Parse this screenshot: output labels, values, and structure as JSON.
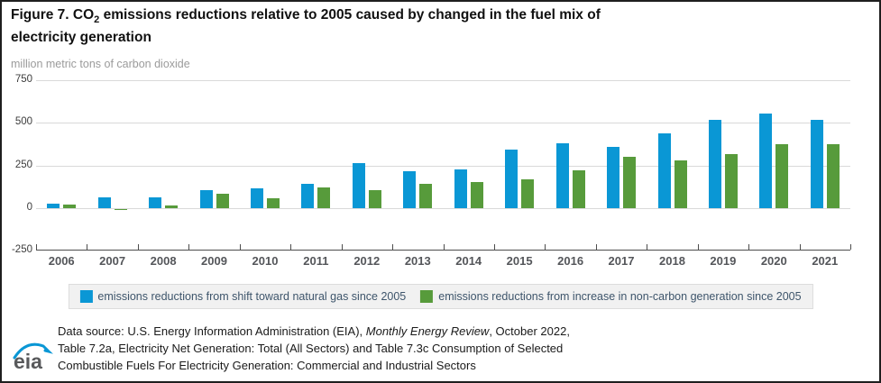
{
  "figure": {
    "title_line1_pre": "Figure 7. CO",
    "title_subscript": "2",
    "title_line1_post": " emissions reductions relative to 2005 caused by changed in the fuel mix of",
    "title_line2": "electricity generation",
    "unit_label": "million metric tons of carbon dioxide"
  },
  "chart_data": {
    "type": "bar",
    "title": "Figure 7. CO2 emissions reductions relative to 2005 caused by changed in the fuel mix of electricity generation",
    "ylabel": "million metric tons of carbon dioxide",
    "xlabel": "",
    "ylim": [
      -250,
      750
    ],
    "yticks": [
      750,
      500,
      250,
      0,
      -250
    ],
    "grid": "horizontal",
    "legend_position": "bottom",
    "categories": [
      "2006",
      "2007",
      "2008",
      "2009",
      "2010",
      "2011",
      "2012",
      "2013",
      "2014",
      "2015",
      "2016",
      "2017",
      "2018",
      "2019",
      "2020",
      "2021"
    ],
    "series": [
      {
        "key": "natural-gas",
        "name": "emissions reductions from shift toward natural gas since 2005",
        "color": "#0a97d5",
        "values": [
          28,
          65,
          65,
          105,
          115,
          140,
          262,
          216,
          228,
          345,
          382,
          358,
          440,
          517,
          555,
          517
        ]
      },
      {
        "key": "non-carbon",
        "name": "emissions reductions from increase in non-carbon generation since 2005",
        "color": "#579b3b",
        "values": [
          21,
          -4,
          16,
          86,
          59,
          122,
          106,
          141,
          155,
          168,
          222,
          299,
          278,
          315,
          372,
          374
        ]
      }
    ]
  },
  "footer": {
    "logo_text": "eia",
    "line1_pre": "Data source: U.S. Energy Information Administration (EIA), ",
    "line1_italic": "Monthly Energy Review",
    "line1_post": ", October 2022,",
    "line2": "Table 7.2a, Electricity Net Generation: Total (All Sectors) and Table 7.3c Consumption of Selected",
    "line3": "Combustible Fuels For Electricity Generation: Commercial and Industrial Sectors"
  },
  "colors": {
    "blue": "#0a97d5",
    "green": "#579b3b",
    "grid": "#d9d9d9",
    "axis": "#4d4d4d",
    "logo_arc": "#0a97d5",
    "logo_text": "#58595b"
  }
}
